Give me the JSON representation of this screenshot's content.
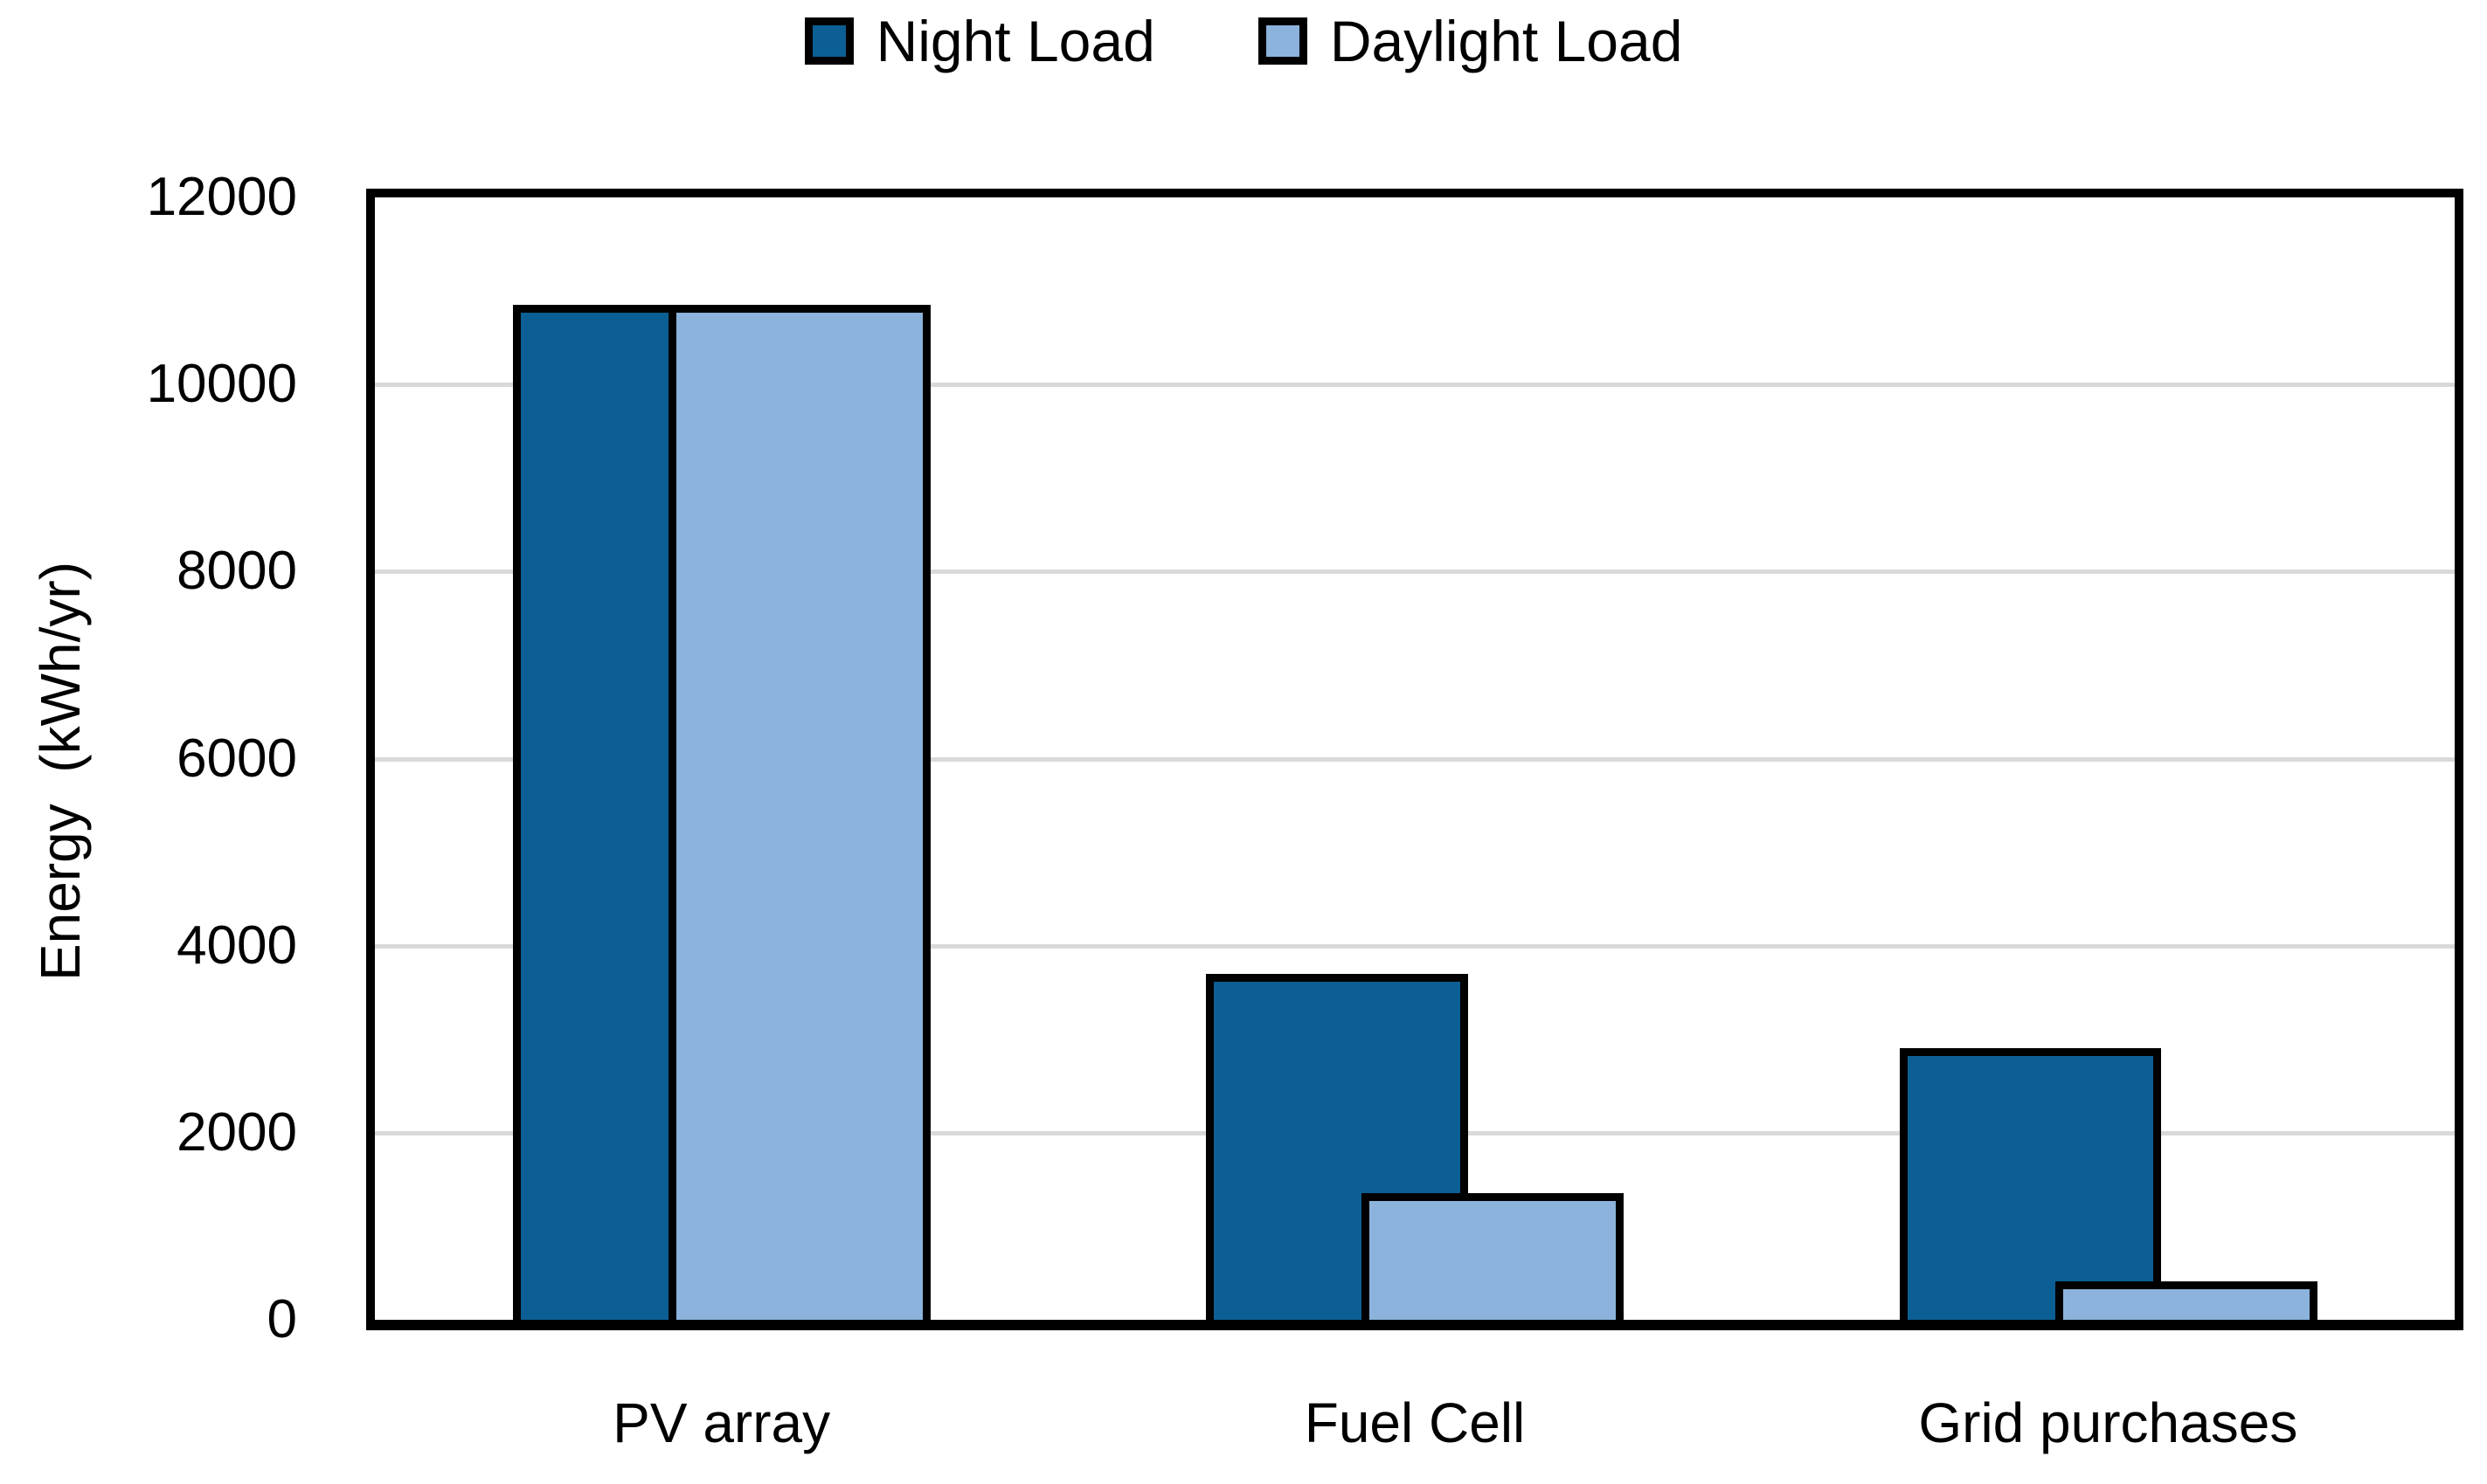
{
  "chart_data": {
    "type": "bar",
    "categories": [
      "PV array",
      "Fuel Cell",
      "Grid purchases"
    ],
    "series": [
      {
        "name": "Night Load",
        "color": "#0C5F94",
        "values": [
          10850,
          3700,
          2900
        ]
      },
      {
        "name": "Daylight Load",
        "color": "#8BB3DB",
        "values": [
          10850,
          1350,
          410
        ]
      }
    ],
    "ylabel": "Energy  (kWh/yr)",
    "ylim": [
      0,
      12000
    ],
    "yticks": [
      0,
      2000,
      4000,
      6000,
      8000,
      10000,
      12000
    ],
    "grid": true,
    "legend_position": "top",
    "colors": {
      "gridline": "#d9d9d9",
      "axis": "#000000",
      "background": "#ffffff"
    },
    "bar_layout": {
      "bar_width_frac_of_slot": 0.378,
      "night_offset_frac": 0.199,
      "daylight_offset_frac": 0.4236
    }
  }
}
